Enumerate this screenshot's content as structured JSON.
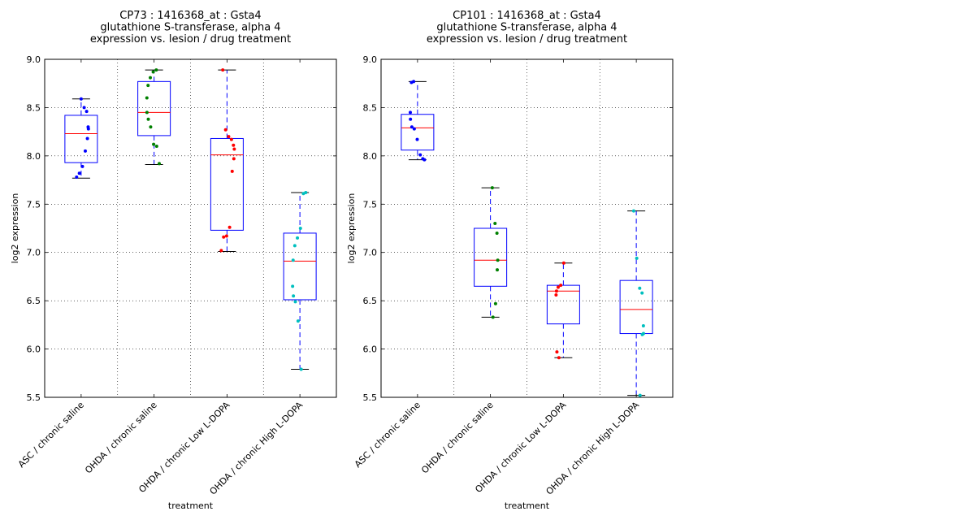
{
  "chart_data": [
    {
      "type": "box",
      "title": [
        "CP73 : 1416368_at : Gsta4",
        "glutathione S-transferase, alpha 4",
        "expression vs. lesion / drug treatment"
      ],
      "xlabel": "treatment",
      "ylabel": "log2 expression",
      "ylim": [
        5.5,
        9.0
      ],
      "yticks": [
        "5.5",
        "6.0",
        "6.5",
        "7.0",
        "7.5",
        "8.0",
        "8.5",
        "9.0"
      ],
      "grid": true,
      "categories": [
        "ASC / chronic saline",
        "OHDA / chronic saline",
        "OHDA / chronic Low L-DOPA",
        "OHDA / chronic High L-DOPA"
      ],
      "boxes": [
        {
          "whislo": 7.77,
          "q1": 7.93,
          "med": 8.23,
          "q3": 8.42,
          "whishi": 8.59
        },
        {
          "whislo": 7.91,
          "q1": 8.21,
          "med": 8.45,
          "q3": 8.77,
          "whishi": 8.89
        },
        {
          "whislo": 7.01,
          "q1": 7.23,
          "med": 8.01,
          "q3": 8.18,
          "whishi": 8.89
        },
        {
          "whislo": 5.79,
          "q1": 6.51,
          "med": 6.91,
          "q3": 7.2,
          "whishi": 7.62
        }
      ],
      "points": [
        [
          8.59,
          8.5,
          8.46,
          8.3,
          8.28,
          8.18,
          8.05,
          7.89,
          7.82,
          7.78
        ],
        [
          8.89,
          8.87,
          8.81,
          8.73,
          8.6,
          8.45,
          8.38,
          8.3,
          8.12,
          8.1,
          7.92
        ],
        [
          8.89,
          8.27,
          8.2,
          8.17,
          8.11,
          8.07,
          7.97,
          7.84,
          7.26,
          7.17,
          7.16,
          7.02
        ],
        [
          7.62,
          7.61,
          7.25,
          7.15,
          7.07,
          6.92,
          6.65,
          6.55,
          6.49,
          6.29,
          5.79
        ]
      ],
      "point_colors": [
        "#0000ff",
        "#008000",
        "#ff0000",
        "#00bfbf"
      ]
    },
    {
      "type": "box",
      "title": [
        "CP101 : 1416368_at : Gsta4",
        "glutathione S-transferase, alpha 4",
        "expression vs. lesion / drug treatment"
      ],
      "xlabel": "treatment",
      "ylabel": "log2 expression",
      "ylim": [
        5.5,
        9.0
      ],
      "yticks": [
        "5.5",
        "6.0",
        "6.5",
        "7.0",
        "7.5",
        "8.0",
        "8.5",
        "9.0"
      ],
      "grid": true,
      "categories": [
        "ASC / chronic saline",
        "OHDA / chronic saline",
        "OHDA / chronic Low L-DOPA",
        "OHDA / chronic High L-DOPA"
      ],
      "boxes": [
        {
          "whislo": 7.96,
          "q1": 8.06,
          "med": 8.29,
          "q3": 8.43,
          "whishi": 8.77
        },
        {
          "whislo": 6.33,
          "q1": 6.65,
          "med": 6.92,
          "q3": 7.25,
          "whishi": 7.67
        },
        {
          "whislo": 5.91,
          "q1": 6.26,
          "med": 6.6,
          "q3": 6.66,
          "whishi": 6.89
        },
        {
          "whislo": 5.52,
          "q1": 6.16,
          "med": 6.41,
          "q3": 6.71,
          "whishi": 7.43
        }
      ],
      "points": [
        [
          8.77,
          8.76,
          8.45,
          8.38,
          8.3,
          8.28,
          8.17,
          8.01,
          7.97,
          7.96
        ],
        [
          7.67,
          7.3,
          7.2,
          6.92,
          6.82,
          6.47,
          6.33
        ],
        [
          6.89,
          6.66,
          6.64,
          6.6,
          6.56,
          5.97,
          5.91
        ],
        [
          7.43,
          6.94,
          6.63,
          6.58,
          6.24,
          6.16,
          6.15,
          5.52
        ]
      ],
      "point_colors": [
        "#0000ff",
        "#008000",
        "#ff0000",
        "#00bfbf"
      ]
    }
  ]
}
